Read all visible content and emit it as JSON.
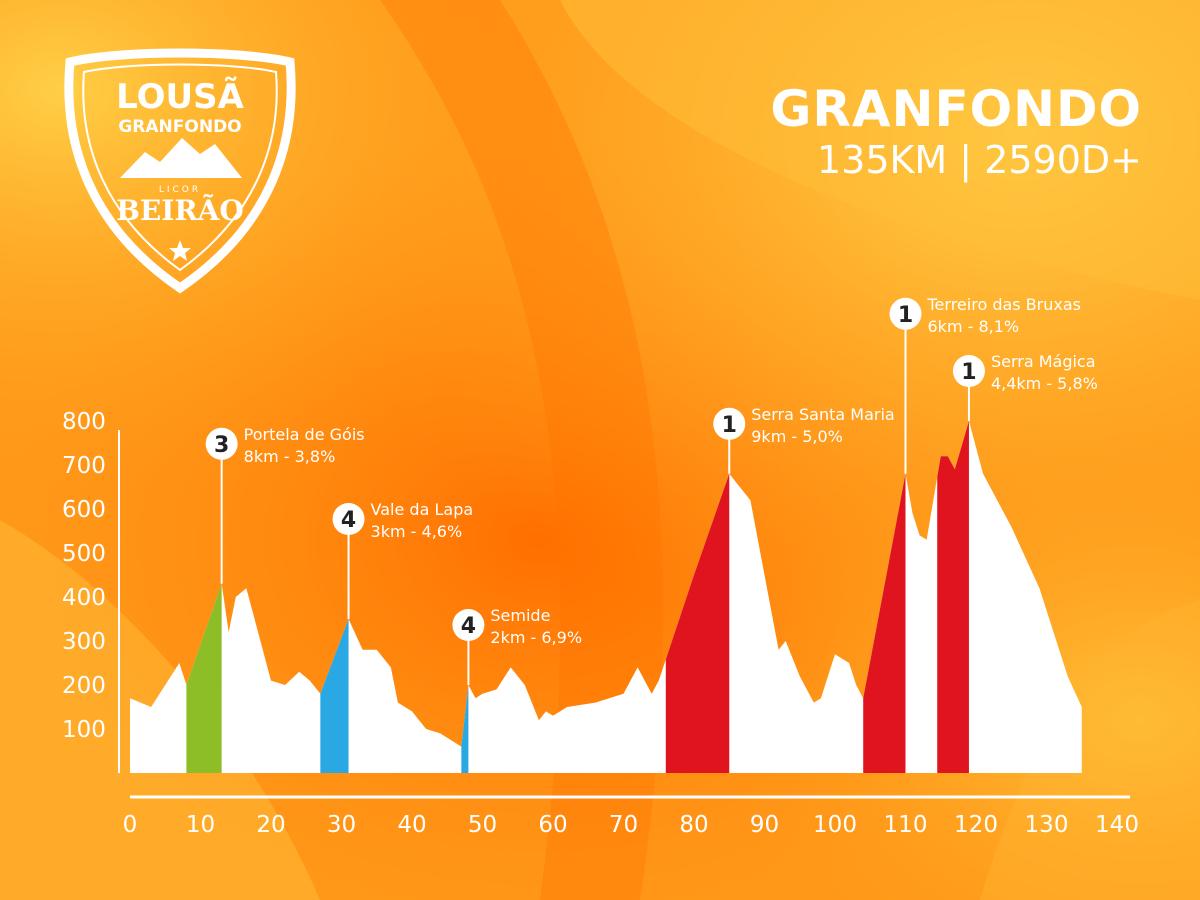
{
  "logo": {
    "line1": "LOUSÃ",
    "line2": "GRANFONDO",
    "line3": "LICOR",
    "line4": "BEIRÃO",
    "icon": "mountains-icon"
  },
  "header": {
    "title": "GRANFONDO",
    "subtitle": "135KM | 2590D+"
  },
  "colors": {
    "background": "#ff9a1a",
    "profile": "#ffffff",
    "cat1": "#e0141e",
    "cat3": "#8dbd27",
    "cat4": "#2aa8e4"
  },
  "chart_data": {
    "type": "area",
    "title": "",
    "xlabel": "",
    "ylabel": "",
    "xlim": [
      0,
      140
    ],
    "ylim": [
      0,
      800
    ],
    "x_ticks": [
      "0",
      "10",
      "20",
      "30",
      "40",
      "50",
      "60",
      "70",
      "80",
      "90",
      "100",
      "110",
      "120",
      "130",
      "140"
    ],
    "y_ticks": [
      "800",
      "700",
      "600",
      "500",
      "400",
      "300",
      "200",
      "100"
    ],
    "profile": [
      [
        0,
        170
      ],
      [
        3,
        150
      ],
      [
        7,
        250
      ],
      [
        8,
        200
      ],
      [
        13,
        430
      ],
      [
        14,
        320
      ],
      [
        15,
        400
      ],
      [
        16.5,
        420
      ],
      [
        18,
        330
      ],
      [
        20,
        210
      ],
      [
        22,
        200
      ],
      [
        24,
        230
      ],
      [
        25.5,
        210
      ],
      [
        27,
        180
      ],
      [
        31,
        350
      ],
      [
        33,
        280
      ],
      [
        35,
        280
      ],
      [
        37,
        240
      ],
      [
        38,
        160
      ],
      [
        40,
        140
      ],
      [
        42,
        100
      ],
      [
        44,
        90
      ],
      [
        47,
        60
      ],
      [
        48,
        200
      ],
      [
        49,
        170
      ],
      [
        50,
        180
      ],
      [
        52,
        190
      ],
      [
        54,
        240
      ],
      [
        56,
        200
      ],
      [
        58,
        120
      ],
      [
        59,
        140
      ],
      [
        60,
        130
      ],
      [
        62,
        150
      ],
      [
        66,
        160
      ],
      [
        70,
        180
      ],
      [
        72,
        240
      ],
      [
        74,
        180
      ],
      [
        75,
        210
      ],
      [
        80,
        450
      ],
      [
        85,
        680
      ],
      [
        86,
        660
      ],
      [
        88,
        620
      ],
      [
        90,
        450
      ],
      [
        92,
        280
      ],
      [
        93,
        300
      ],
      [
        95,
        220
      ],
      [
        97,
        160
      ],
      [
        98,
        170
      ],
      [
        100,
        270
      ],
      [
        102,
        250
      ],
      [
        103,
        200
      ],
      [
        104,
        170
      ],
      [
        110,
        680
      ],
      [
        111,
        590
      ],
      [
        112,
        540
      ],
      [
        113,
        530
      ],
      [
        115,
        720
      ],
      [
        116,
        720
      ],
      [
        117,
        690
      ],
      [
        119,
        800
      ],
      [
        121,
        680
      ],
      [
        125,
        560
      ],
      [
        129,
        420
      ],
      [
        133,
        220
      ],
      [
        135,
        150
      ]
    ],
    "climbs": [
      {
        "category": "3",
        "name": "Portela de Góis",
        "stats": "8km - 3,8%",
        "x_start": 8,
        "x_end": 13,
        "peak_x": 13,
        "peak_y": 430,
        "color": "#8dbd27"
      },
      {
        "category": "4",
        "name": "Vale da Lapa",
        "stats": "3km - 4,6%",
        "x_start": 27,
        "x_end": 31,
        "peak_x": 31,
        "peak_y": 350,
        "color": "#2aa8e4"
      },
      {
        "category": "4",
        "name": "Semide",
        "stats": "2km - 6,9%",
        "x_start": 47,
        "x_end": 48,
        "peak_x": 48,
        "peak_y": 200,
        "color": "#2aa8e4"
      },
      {
        "category": "1",
        "name": "Serra Santa Maria",
        "stats": "9km - 5,0%",
        "x_start": 76,
        "x_end": 85,
        "peak_x": 85,
        "peak_y": 680,
        "color": "#e0141e"
      },
      {
        "category": "1",
        "name": "Terreiro das Bruxas",
        "stats": "6km - 8,1%",
        "x_start": 104,
        "x_end": 110,
        "peak_x": 110,
        "peak_y": 680,
        "color": "#e0141e"
      },
      {
        "category": "1",
        "name": "Serra Mágica",
        "stats": "4,4km - 5,8%",
        "x_start": 114.5,
        "x_end": 119,
        "peak_x": 119,
        "peak_y": 800,
        "color": "#e0141e"
      }
    ]
  }
}
